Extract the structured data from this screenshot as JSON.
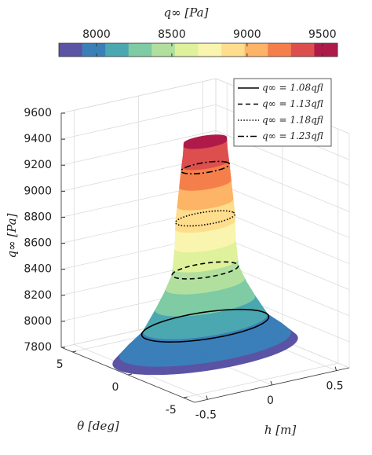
{
  "chart_data": {
    "type": "surface3d",
    "colorbar": {
      "label": "q∞ [Pa]",
      "clim": [
        7750,
        9600
      ],
      "ticks": [
        8000,
        8500,
        9000,
        9500
      ],
      "colors": [
        "#5b53a4",
        "#3b7fb9",
        "#4ba7b0",
        "#7ecba4",
        "#b1df9e",
        "#dff19b",
        "#f9f5ae",
        "#fedd8d",
        "#fdb466",
        "#f57f4b",
        "#dd4f4e",
        "#b01a4a"
      ]
    },
    "xlabel": "h [m]",
    "ylabel": "θ [deg]",
    "zlabel": "q∞ [Pa]",
    "xlim": [
      -0.6,
      0.6
    ],
    "xticks": [
      -0.5,
      0,
      0.5
    ],
    "ylim": [
      -6,
      6
    ],
    "yticks": [
      -5,
      0,
      5
    ],
    "zlim": [
      7800,
      9600
    ],
    "zticks": [
      7800,
      8000,
      8200,
      8400,
      8600,
      8800,
      9000,
      9200,
      9400,
      9600
    ],
    "grid": true,
    "surface": {
      "q": [
        7850,
        7950,
        8045,
        8200,
        8330,
        8470,
        8670,
        8870,
        9060,
        9260,
        9380,
        9470
      ],
      "h_radius": [
        0.67,
        0.57,
        0.46,
        0.37,
        0.3,
        0.24,
        0.22,
        0.215,
        0.195,
        0.175,
        0.16,
        0.155
      ],
      "theta_radius": [
        3,
        2.55,
        2.07,
        1.65,
        1.35,
        1.08,
        0.99,
        0.96,
        0.87,
        0.78,
        0.72,
        0.69
      ]
    },
    "series": [
      {
        "name": "q∞ = 1.08qfl",
        "style": "solid",
        "color": "#000000",
        "value": 8045
      },
      {
        "name": "q∞ = 1.13qfl",
        "style": "dashed",
        "color": "#000000",
        "value": 8470
      },
      {
        "name": "q∞ = 1.18qfl",
        "style": "dotted",
        "color": "#000000",
        "value": 8870
      },
      {
        "name": "q∞ = 1.23qfl",
        "style": "dashdot",
        "color": "#000000",
        "value": 9260
      }
    ],
    "legend": "upper right"
  }
}
